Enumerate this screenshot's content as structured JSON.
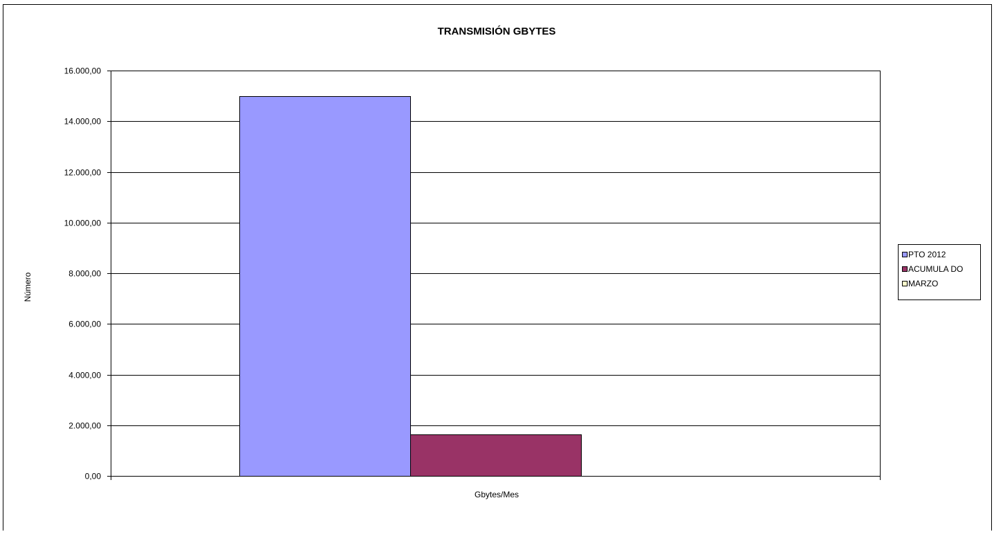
{
  "chart_data": {
    "type": "bar",
    "title": "TRANSMISIÓN GBYTES",
    "xlabel": "Gbytes/Mes",
    "ylabel": "Número",
    "categories": [
      "Gbytes/Mes"
    ],
    "ylim": [
      0,
      16000
    ],
    "yticks": [
      "0,00",
      "2.000,00",
      "4.000,00",
      "6.000,00",
      "8.000,00",
      "10.000,00",
      "12.000,00",
      "14.000,00",
      "16.000,00"
    ],
    "grid": true,
    "legend_position": "right",
    "series": [
      {
        "name": "PTO  2012",
        "values": [
          15000
        ],
        "color": "#9999ff"
      },
      {
        "name": "ACUMULA DO",
        "values": [
          1640
        ],
        "color": "#993366"
      },
      {
        "name": "MARZO",
        "values": [
          0
        ],
        "color": "#ffffcc"
      }
    ]
  }
}
